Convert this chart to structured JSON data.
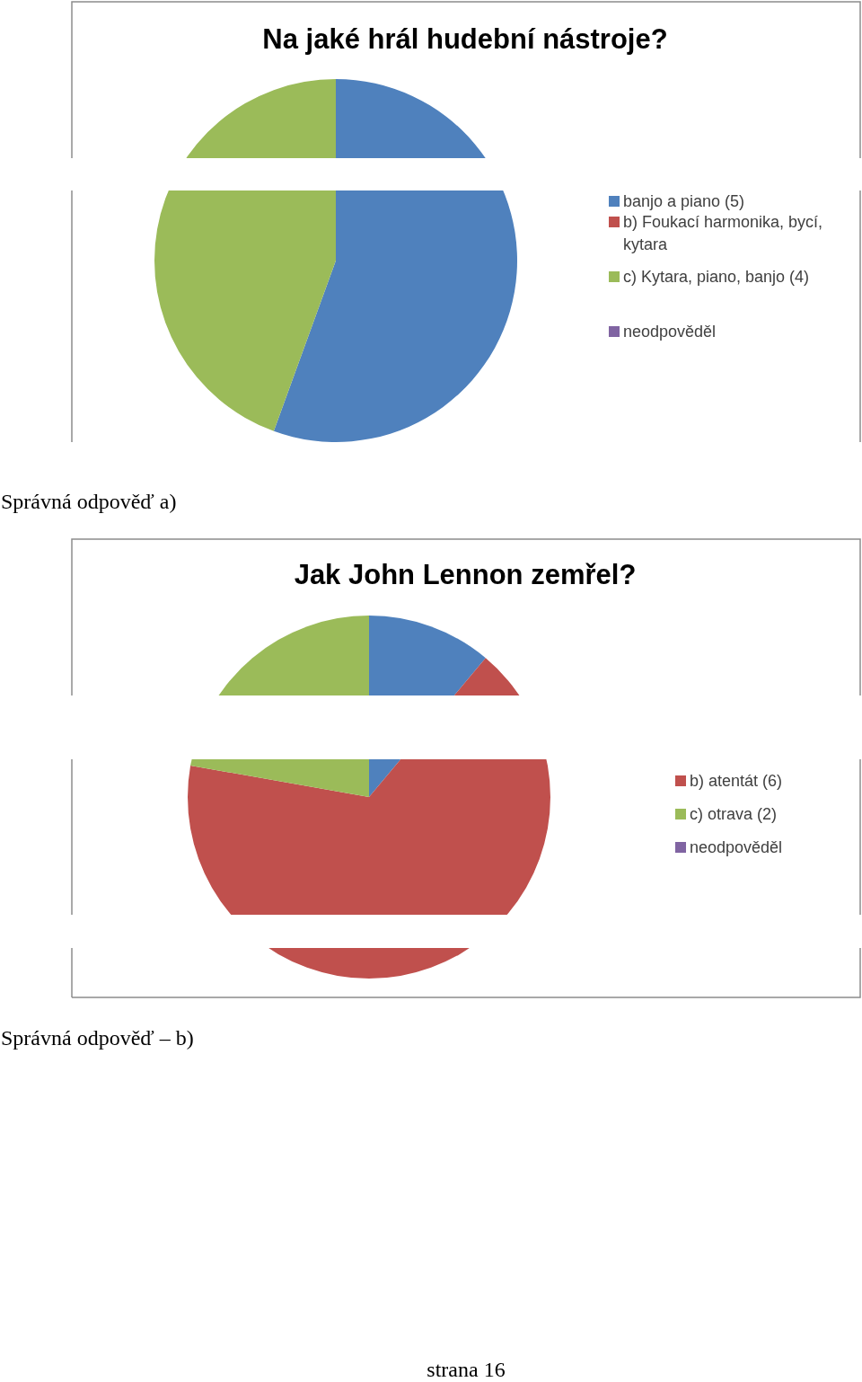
{
  "chart_data": [
    {
      "type": "pie",
      "title": "Na jaké hrál hudební nástroje?",
      "categories": [
        "banjo a piano (5)",
        "b) Foukací harmonika, bycí, kytara",
        "c) Kytara, piano, banjo (4)",
        "neodpověděl"
      ],
      "values": [
        5,
        0,
        4,
        0
      ],
      "colors": [
        "#4f81bd",
        "#c0504d",
        "#9bbb59",
        "#8064a2"
      ],
      "legend": "right",
      "annotations": [
        "Správná odpověď a)"
      ]
    },
    {
      "type": "pie",
      "title": "Jak John Lennon zemřel?",
      "categories": [
        null,
        "b) atentát (6)",
        "c) otrava (2)",
        "neodpověděl"
      ],
      "values": [
        1,
        6,
        2,
        0
      ],
      "colors": [
        "#4f81bd",
        "#c0504d",
        "#9bbb59",
        "#8064a2"
      ],
      "legend": "right",
      "annotations": [
        "Správná odpověď – b)",
        "strana 16"
      ]
    }
  ]
}
